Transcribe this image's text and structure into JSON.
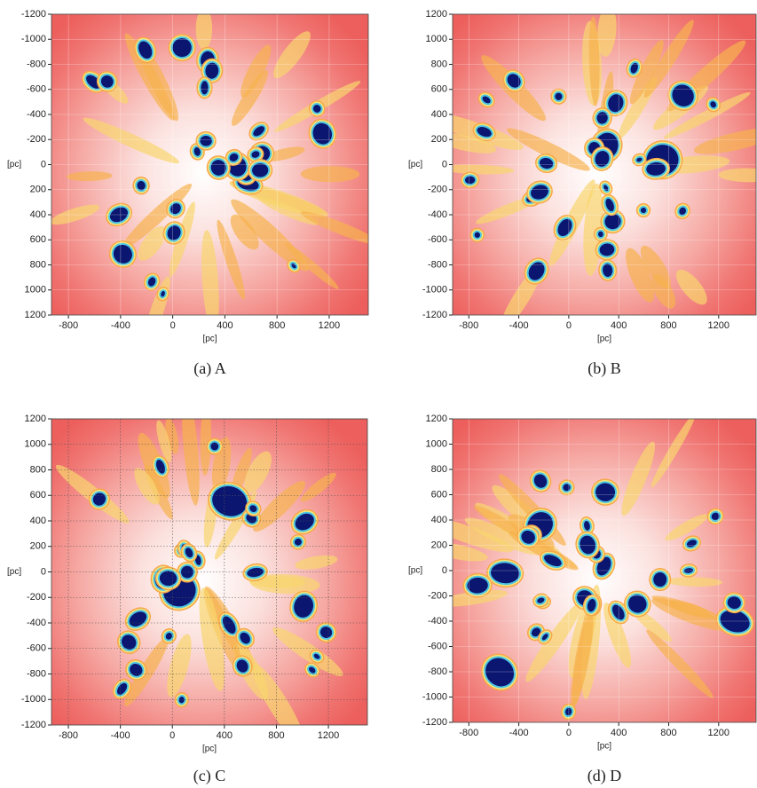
{
  "chart_data": [
    {
      "type": "heatmap",
      "caption": "(a) A",
      "xlabel": "[pc]",
      "ylabel": "[pc]",
      "xlim": [
        -930,
        1500
      ],
      "ylim": [
        1200,
        -1200
      ],
      "xticks": [
        -800,
        -400,
        0,
        400,
        800,
        1200
      ],
      "yticks": [
        -1200,
        -1000,
        -800,
        -600,
        -400,
        -200,
        0,
        200,
        400,
        600,
        800,
        1000,
        1200
      ],
      "grid": true,
      "grid_style": "solid"
    },
    {
      "type": "heatmap",
      "caption": "(b) B",
      "xlabel": "[pc]",
      "ylabel": "[pc]",
      "xlim": [
        -930,
        1500
      ],
      "ylim": [
        -1200,
        1200
      ],
      "xticks": [
        -800,
        -400,
        0,
        400,
        800,
        1200
      ],
      "yticks": [
        -1200,
        -1000,
        -800,
        -600,
        -400,
        -200,
        0,
        200,
        400,
        600,
        800,
        1000,
        1200
      ],
      "grid": true,
      "grid_style": "solid"
    },
    {
      "type": "heatmap",
      "caption": "(c) C",
      "xlabel": "[pc]",
      "ylabel": "[pc]",
      "xlim": [
        -930,
        1500
      ],
      "ylim": [
        -1200,
        1200
      ],
      "xticks": [
        -800,
        -400,
        0,
        400,
        800,
        1200
      ],
      "yticks": [
        -1200,
        -1000,
        -800,
        -600,
        -400,
        -200,
        0,
        200,
        400,
        600,
        800,
        1000,
        1200
      ],
      "grid": true,
      "grid_style": "dotted"
    },
    {
      "type": "heatmap",
      "caption": "(d) D",
      "xlabel": "[pc]",
      "ylabel": "[pc]",
      "xlim": [
        -930,
        1500
      ],
      "ylim": [
        -1200,
        1200
      ],
      "xticks": [
        -800,
        -400,
        0,
        400,
        800,
        1200
      ],
      "yticks": [
        -1200,
        -1000,
        -800,
        -600,
        -400,
        -200,
        0,
        200,
        400,
        600,
        800,
        1000,
        1200
      ],
      "grid": true,
      "grid_style": "solid"
    }
  ]
}
